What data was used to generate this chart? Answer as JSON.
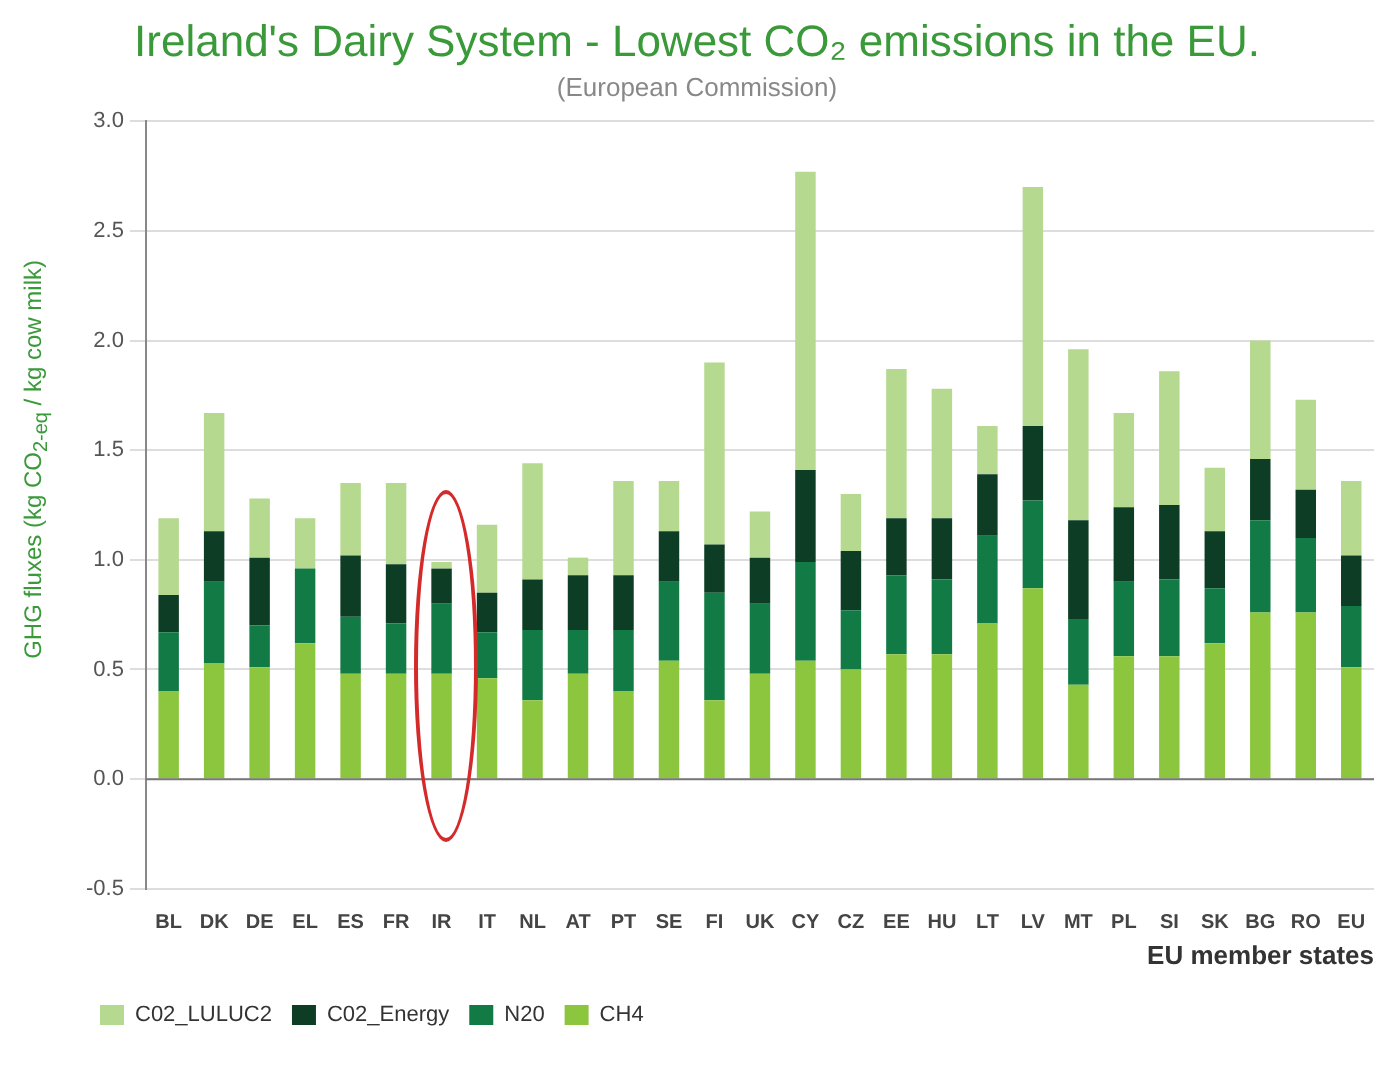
{
  "chart_data": {
    "type": "bar",
    "title": "Ireland's Dairy System - Lowest CO₂ emissions in the EU.",
    "subtitle": "(European Commission)",
    "xlabel": "EU member states",
    "ylabel": "GHG fluxes (kg CO$_{2-eq}$ / kg cow milk)",
    "categories": [
      "BL",
      "DK",
      "DE",
      "EL",
      "ES",
      "FR",
      "IR",
      "IT",
      "NL",
      "AT",
      "PT",
      "SE",
      "FI",
      "UK",
      "CY",
      "CZ",
      "EE",
      "HU",
      "LT",
      "LV",
      "MT",
      "PL",
      "SI",
      "SK",
      "BG",
      "RO",
      "EU"
    ],
    "stacked": true,
    "series": [
      {
        "name": "CH4",
        "color": "#8cc63f",
        "values": [
          0.4,
          0.53,
          0.51,
          0.62,
          0.48,
          0.48,
          0.48,
          0.46,
          0.36,
          0.48,
          0.4,
          0.54,
          0.36,
          0.48,
          0.54,
          0.5,
          0.57,
          0.57,
          0.71,
          0.87,
          0.43,
          0.56,
          0.56,
          0.62,
          0.76,
          0.76,
          0.51
        ]
      },
      {
        "name": "N20",
        "color": "#127a45",
        "values": [
          0.27,
          0.37,
          0.19,
          0.34,
          0.26,
          0.23,
          0.32,
          0.21,
          0.32,
          0.2,
          0.28,
          0.36,
          0.49,
          0.32,
          0.45,
          0.27,
          0.36,
          0.34,
          0.4,
          0.4,
          0.3,
          0.34,
          0.35,
          0.25,
          0.42,
          0.34,
          0.28
        ]
      },
      {
        "name": "C02_Energy",
        "color": "#0d3d24",
        "values": [
          0.17,
          0.23,
          0.31,
          0,
          0.28,
          0.27,
          0.16,
          0.18,
          0.23,
          0.25,
          0.25,
          0.23,
          0.22,
          0.21,
          0.42,
          0.27,
          0.26,
          0.28,
          0.28,
          0.34,
          0.45,
          0.34,
          0.34,
          0.26,
          0.28,
          0.22,
          0.23
        ]
      },
      {
        "name": "C02_LULUC2",
        "color": "#b5d98f",
        "values": [
          0.35,
          0.54,
          0.27,
          0.23,
          0.33,
          0.37,
          0.03,
          0.31,
          0.53,
          0.08,
          0.43,
          0.23,
          0.83,
          0.21,
          1.36,
          0.26,
          0.68,
          0.59,
          0.22,
          1.09,
          0.78,
          0.43,
          0.61,
          0.29,
          0.54,
          0.41,
          0.34
        ]
      }
    ],
    "ylim": [
      -0.5,
      3
    ],
    "yticks": [
      {
        "value": -0.5,
        "label": "-0.5"
      },
      {
        "value": 0,
        "label": "0.0"
      },
      {
        "value": 0.5,
        "label": "0.5"
      },
      {
        "value": 1,
        "label": "1.0"
      },
      {
        "value": 1.5,
        "label": "1.5"
      },
      {
        "value": 2,
        "label": "2.0"
      },
      {
        "value": 2.5,
        "label": "2.5"
      },
      {
        "value": 3,
        "label": "3.0"
      }
    ],
    "grid": "y",
    "legend": "bottom left"
  }
}
